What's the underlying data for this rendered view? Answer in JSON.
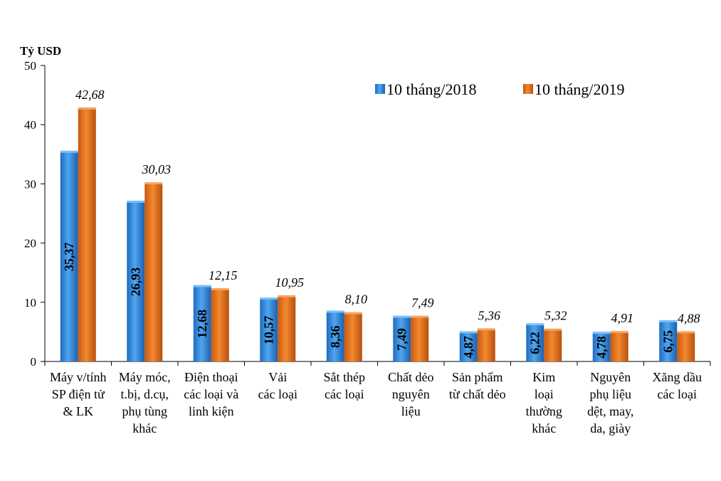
{
  "chart_data": {
    "type": "bar",
    "unit_label": "Tỷ USD",
    "ylim": [
      0,
      50
    ],
    "y_ticks": [
      "0",
      "10",
      "20",
      "30",
      "40",
      "50"
    ],
    "categories": [
      [
        "Máy v/tính",
        "SP điện tử",
        "& LK"
      ],
      [
        "Máy móc,",
        "t.bị, d.cụ,",
        "phụ tùng",
        "khác"
      ],
      [
        "Điện thoại",
        "các loại và",
        "linh kiện"
      ],
      [
        "Vải",
        "các loại"
      ],
      [
        "Sắt thép",
        "các loại"
      ],
      [
        "Chất dẻo",
        "nguyên",
        "liệu"
      ],
      [
        "Sản phẩm",
        "từ chất dẻo"
      ],
      [
        "Kim",
        "loại",
        "thường",
        "khác"
      ],
      [
        "Nguyên",
        "phụ liệu",
        "dệt, may,",
        "da, giày"
      ],
      [
        "Xăng dầu",
        "các loại"
      ]
    ],
    "series": [
      {
        "name": "10 tháng/2018",
        "color": "#2E8DE0",
        "values": [
          35.37,
          26.93,
          12.68,
          10.57,
          8.36,
          7.49,
          4.87,
          6.22,
          4.78,
          6.75
        ],
        "labels": [
          "35,37",
          "26,93",
          "12,68",
          "10,57",
          "8,36",
          "7,49",
          "4,87",
          "6,22",
          "4,78",
          "6,75"
        ]
      },
      {
        "name": "10 tháng/2019",
        "color": "#E8731E",
        "values": [
          42.68,
          30.03,
          12.15,
          10.95,
          8.1,
          7.49,
          5.36,
          5.32,
          4.91,
          4.88
        ],
        "labels": [
          "42,68",
          "30,03",
          "12,15",
          "10,95",
          "8,10",
          "7,49",
          "5,36",
          "5,32",
          "4,91",
          "4,88"
        ]
      }
    ],
    "legend_position": "top-right",
    "grid": false
  }
}
